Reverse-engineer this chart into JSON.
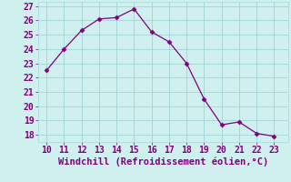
{
  "x": [
    10,
    11,
    12,
    13,
    14,
    15,
    16,
    17,
    18,
    19,
    20,
    21,
    22,
    23
  ],
  "y": [
    22.5,
    24.0,
    25.3,
    26.1,
    26.2,
    26.8,
    25.2,
    24.5,
    23.0,
    20.5,
    18.7,
    18.9,
    18.1,
    17.9
  ],
  "line_color": "#800080",
  "marker": "D",
  "marker_size": 2.5,
  "background_color": "#d0f0f0",
  "grid_color": "#a8d8d8",
  "xlabel": "Windchill (Refroidissement éolien,°C)",
  "xlabel_color": "#800080",
  "xlabel_fontsize": 7.5,
  "tick_color": "#800080",
  "tick_fontsize": 7,
  "xlim": [
    9.5,
    23.8
  ],
  "ylim": [
    17.5,
    27.3
  ],
  "yticks": [
    18,
    19,
    20,
    21,
    22,
    23,
    24,
    25,
    26,
    27
  ],
  "xticks": [
    10,
    11,
    12,
    13,
    14,
    15,
    16,
    17,
    18,
    19,
    20,
    21,
    22,
    23
  ]
}
